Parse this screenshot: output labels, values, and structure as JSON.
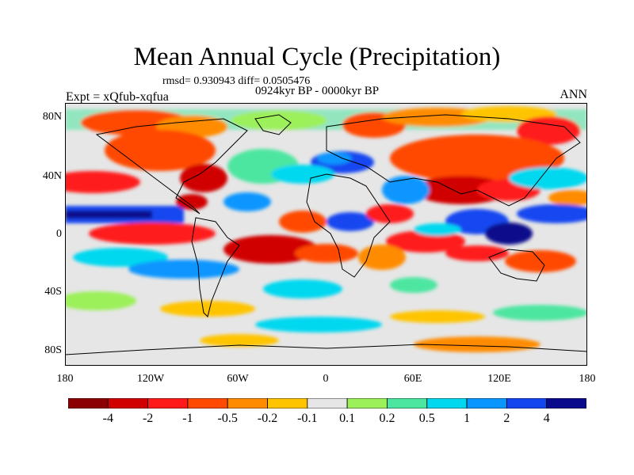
{
  "title": "Mean Annual Cycle (Precipitation)",
  "stats": "rmsd= 0.930943 diff= 0.0505476",
  "period": "0924kyr BP - 0000kyr BP",
  "experiment": "Expt = xQfub-xqfua",
  "season": "ANN",
  "lat_ticks": [
    "80N",
    "40N",
    "0",
    "40S",
    "80S"
  ],
  "lon_ticks": [
    "180",
    "120W",
    "60W",
    "0",
    "60E",
    "120E",
    "180"
  ],
  "colorbar": {
    "labels": [
      "-4",
      "-2",
      "-1",
      "-0.5",
      "-0.2",
      "-0.1",
      "0.1",
      "0.2",
      "0.5",
      "1",
      "2",
      "4"
    ],
    "colors": [
      "#8b0000",
      "#d10000",
      "#ff1a1a",
      "#ff4a00",
      "#ff8c00",
      "#ffc400",
      "#e6e6e6",
      "#9cf05a",
      "#4de6a0",
      "#00d8f0",
      "#0a96ff",
      "#1446f0",
      "#0a0a8c"
    ]
  },
  "map_regions": {
    "background": "#e6e6e6",
    "land_outline_color": "#000000"
  }
}
